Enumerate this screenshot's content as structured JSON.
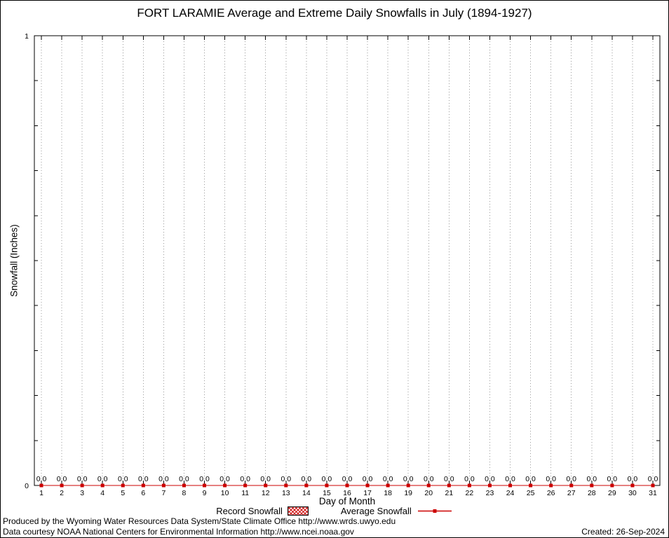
{
  "chart_data": {
    "type": "line",
    "title": "FORT LARAMIE Average and Extreme Daily Snowfalls in July (1894-1927)",
    "xlabel": "Day of Month",
    "ylabel": "Snowfall (Inches)",
    "x": [
      1,
      2,
      3,
      4,
      5,
      6,
      7,
      8,
      9,
      10,
      11,
      12,
      13,
      14,
      15,
      16,
      17,
      18,
      19,
      20,
      21,
      22,
      23,
      24,
      25,
      26,
      27,
      28,
      29,
      30,
      31
    ],
    "xlim": [
      1,
      31
    ],
    "ylim": [
      0,
      1
    ],
    "ytick_labels": [
      "0",
      "1"
    ],
    "grid": "vertical-dotted-per-day",
    "legend_position": "bottom-center",
    "series": [
      {
        "name": "Record Snowfall",
        "style": "hatched-bar",
        "color": "#cc0000",
        "values": [
          0,
          0,
          0,
          0,
          0,
          0,
          0,
          0,
          0,
          0,
          0,
          0,
          0,
          0,
          0,
          0,
          0,
          0,
          0,
          0,
          0,
          0,
          0,
          0,
          0,
          0,
          0,
          0,
          0,
          0,
          0
        ]
      },
      {
        "name": "Average Snowfall",
        "style": "linespoints",
        "color": "#cc0000",
        "values": [
          0,
          0,
          0,
          0,
          0,
          0,
          0,
          0,
          0,
          0,
          0,
          0,
          0,
          0,
          0,
          0,
          0,
          0,
          0,
          0,
          0,
          0,
          0,
          0,
          0,
          0,
          0,
          0,
          0,
          0,
          0
        ]
      }
    ],
    "point_labels": [
      "0.0",
      "0.0",
      "0.0",
      "0.0",
      "0.0",
      "0.0",
      "0.0",
      "0.0",
      "0.0",
      "0.0",
      "0.0",
      "0.0",
      "0.0",
      "0.0",
      "0.0",
      "0.0",
      "0.0",
      "0.0",
      "0.0",
      "0.0",
      "0.0",
      "0.0",
      "0.0",
      "0.0",
      "0.0",
      "0.0",
      "0.0",
      "0.0",
      "0.0",
      "0.0",
      "0.0"
    ]
  },
  "colors": {
    "series": "#cc0000",
    "grid": "#999999",
    "frame": "#000000"
  },
  "footer": {
    "produced_by": "Produced by the Wyoming Water Resources Data System/State Climate Office http://www.wrds.uwyo.edu",
    "data_courtesy": "Data courtesy NOAA National Centers for Environmental Information http://www.ncei.noaa.gov",
    "created": "Created: 26-Sep-2024"
  }
}
